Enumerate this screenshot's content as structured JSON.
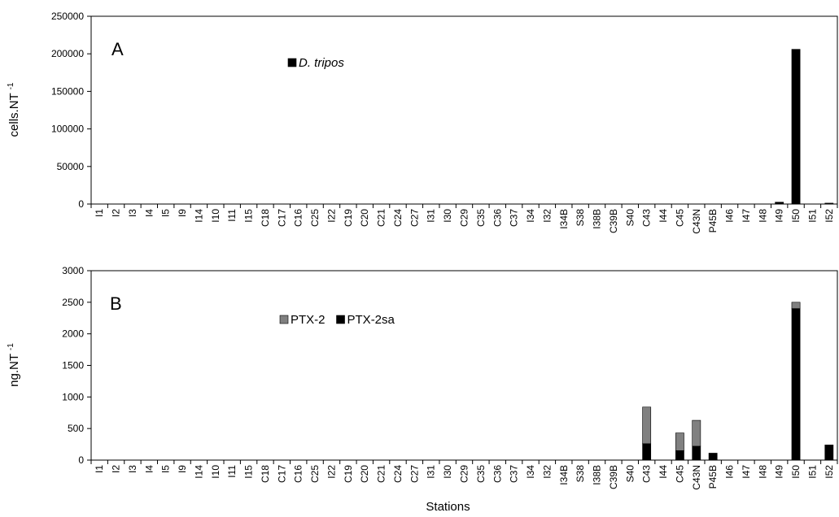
{
  "chart_data": [
    {
      "type": "bar",
      "panel_label": "A",
      "ylabel": "cells.NT",
      "ylabel_sup": "-1",
      "ylim": [
        0,
        250000
      ],
      "yticks": [
        0,
        50000,
        100000,
        150000,
        200000,
        250000
      ],
      "ytick_labels": [
        "0",
        "50000",
        "100000",
        "150000",
        "200000",
        "250000"
      ],
      "categories": [
        "I1",
        "I2",
        "I3",
        "I4",
        "I5",
        "I9",
        "I14",
        "I10",
        "I11",
        "I15",
        "C18",
        "C17",
        "C16",
        "C25",
        "I22",
        "C19",
        "C20",
        "C21",
        "C24",
        "C27",
        "I31",
        "I30",
        "C29",
        "C35",
        "C36",
        "C37",
        "I34",
        "I32",
        "I34B",
        "S38",
        "I38B",
        "C39B",
        "S40",
        "C43",
        "I44",
        "C45",
        "C43N",
        "P45B",
        "I46",
        "I47",
        "I48",
        "I49",
        "I50",
        "I51",
        "I52"
      ],
      "series": [
        {
          "name": "D. tripos",
          "color": "#000000",
          "values": [
            0,
            0,
            0,
            0,
            0,
            0,
            0,
            0,
            0,
            0,
            0,
            0,
            0,
            0,
            0,
            0,
            0,
            0,
            0,
            0,
            0,
            0,
            0,
            0,
            0,
            0,
            0,
            0,
            0,
            0,
            0,
            0,
            0,
            0,
            0,
            0,
            0,
            0,
            0,
            0,
            0,
            2500,
            206000,
            0,
            1200
          ]
        }
      ],
      "legend_position": "top-center",
      "grid": false
    },
    {
      "type": "bar",
      "stacked": true,
      "panel_label": "B",
      "ylabel": "ng.NT",
      "ylabel_sup": "-1",
      "xlabel": "Stations",
      "ylim": [
        0,
        3000
      ],
      "yticks": [
        0,
        500,
        1000,
        1500,
        2000,
        2500,
        3000
      ],
      "ytick_labels": [
        "0",
        "500",
        "1000",
        "1500",
        "2000",
        "2500",
        "3000"
      ],
      "categories": [
        "I1",
        "I2",
        "I3",
        "I4",
        "I5",
        "I9",
        "I14",
        "I10",
        "I11",
        "I15",
        "C18",
        "C17",
        "C16",
        "C25",
        "I22",
        "C19",
        "C20",
        "C21",
        "C24",
        "C27",
        "I31",
        "I30",
        "C29",
        "C35",
        "C36",
        "C37",
        "I34",
        "I32",
        "I34B",
        "S38",
        "I38B",
        "C39B",
        "S40",
        "C43",
        "I44",
        "C45",
        "C43N",
        "P45B",
        "I46",
        "I47",
        "I48",
        "I49",
        "I50",
        "I51",
        "I52"
      ],
      "series": [
        {
          "name": "PTX-2sa",
          "color": "#000000",
          "values": [
            0,
            0,
            0,
            0,
            0,
            0,
            0,
            0,
            0,
            0,
            0,
            0,
            0,
            0,
            0,
            0,
            0,
            0,
            0,
            0,
            0,
            0,
            0,
            0,
            0,
            0,
            0,
            0,
            0,
            0,
            0,
            0,
            0,
            260,
            0,
            150,
            220,
            110,
            0,
            0,
            0,
            0,
            2400,
            0,
            240
          ]
        },
        {
          "name": "PTX-2",
          "color": "#808080",
          "values": [
            0,
            0,
            0,
            0,
            0,
            0,
            0,
            0,
            0,
            0,
            0,
            0,
            0,
            0,
            0,
            0,
            0,
            0,
            0,
            0,
            0,
            0,
            0,
            0,
            0,
            0,
            0,
            0,
            0,
            0,
            0,
            0,
            0,
            580,
            0,
            280,
            410,
            0,
            0,
            0,
            0,
            0,
            100,
            0,
            0
          ]
        }
      ],
      "legend_order": [
        "PTX-2",
        "PTX-2sa"
      ],
      "legend_position": "top-center",
      "grid": false
    }
  ]
}
